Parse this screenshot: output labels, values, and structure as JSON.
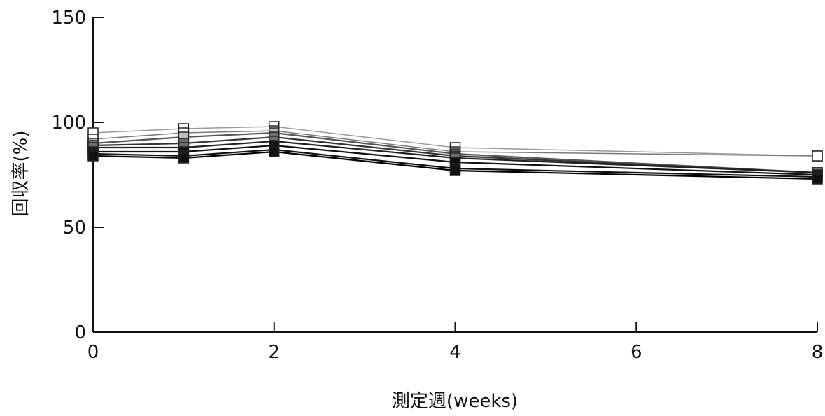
{
  "chart_data": {
    "type": "line",
    "title": "",
    "xlabel": "測定週(weeks)",
    "ylabel": "回収率(%)",
    "x": [
      0,
      1,
      2,
      4,
      8
    ],
    "xticks": [
      0,
      2,
      4,
      6,
      8
    ],
    "xtick_labels": [
      "0",
      "2",
      "4",
      "6",
      "8"
    ],
    "yticks": [
      0,
      50,
      100,
      150
    ],
    "ytick_labels": [
      "0",
      "50",
      "100",
      "150"
    ],
    "xlim": [
      0,
      8
    ],
    "ylim": [
      0,
      150
    ],
    "grid": false,
    "legend": "none",
    "series": [
      {
        "marker": "open-square",
        "color": "#9a9a9a",
        "values": [
          95,
          97,
          98,
          88,
          84
        ]
      },
      {
        "marker": "open-square",
        "color": "#7a7a7a",
        "values": [
          92,
          95,
          96,
          86,
          84
        ]
      },
      {
        "marker": "light-square",
        "color": "#555555",
        "values": [
          90,
          93,
          95,
          85,
          76
        ]
      },
      {
        "marker": "gray-square",
        "color": "#333333",
        "values": [
          89,
          90,
          93,
          84,
          76
        ]
      },
      {
        "marker": "gray-square",
        "color": "#222222",
        "values": [
          88,
          88,
          91,
          83,
          76
        ]
      },
      {
        "marker": "filled-square",
        "color": "#111111",
        "values": [
          86,
          86,
          89,
          81,
          75
        ]
      },
      {
        "marker": "filled-square",
        "color": "#111111",
        "values": [
          85,
          84,
          87,
          78,
          74
        ]
      },
      {
        "marker": "filled-square",
        "color": "#000000",
        "values": [
          84,
          83,
          86,
          77,
          73
        ]
      }
    ]
  }
}
